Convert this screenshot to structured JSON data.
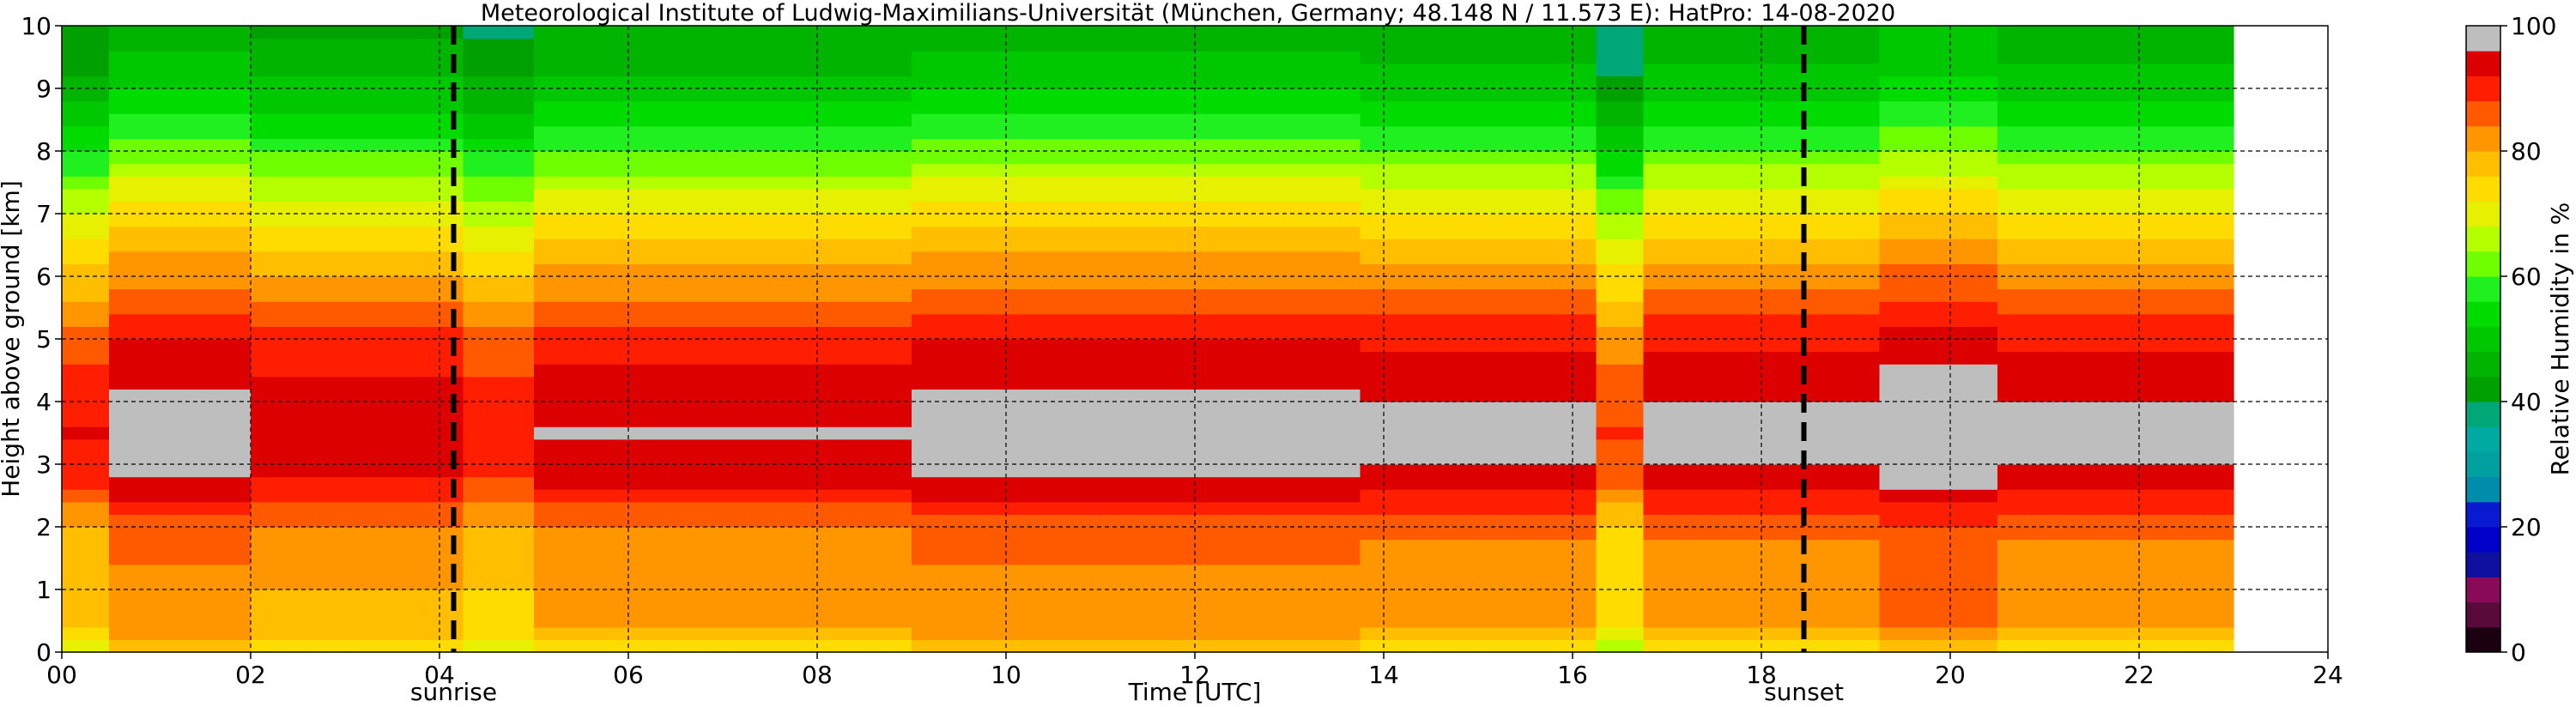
{
  "chart_data": [
    {
      "type": "heatmap",
      "title": "Meteorological Institute of Ludwig-Maximilians-Universität (München, Germany; 48.148 N / 11.573 E):    HatPro: 14-08-2020",
      "xlabel": "Time [UTC]",
      "ylabel": "Height above ground [km]",
      "xlim": [
        0,
        24
      ],
      "ylim": [
        0,
        10
      ],
      "x_ticks": [
        "00",
        "02",
        "04",
        "06",
        "08",
        "10",
        "12",
        "14",
        "16",
        "18",
        "20",
        "22",
        "24"
      ],
      "y_ticks": [
        "0",
        "1",
        "2",
        "3",
        "4",
        "5",
        "6",
        "7",
        "8",
        "9",
        "10"
      ],
      "grid": true,
      "data_end_hour": 23,
      "annotations": [
        {
          "label": "sunrise",
          "x": 4.15
        },
        {
          "label": "sunset",
          "x": 18.45
        }
      ],
      "humidity_profile": {
        "heights_km": [
          0,
          0.1,
          0.2,
          0.5,
          1.0,
          1.5,
          2.0,
          2.5,
          3.0,
          3.5,
          4.0,
          4.5,
          5.0,
          5.5,
          6.0,
          6.5,
          7.0,
          7.5,
          8.0,
          8.5,
          9.0,
          9.5,
          10.0
        ],
        "relative_humidity_percent": [
          88,
          72,
          76,
          78,
          79,
          80,
          82,
          88,
          93,
          94,
          93,
          90,
          88,
          83,
          79,
          74,
          70,
          64,
          58,
          52,
          48,
          44,
          42
        ]
      },
      "period_adjustments": [
        {
          "from": 0.0,
          "to": 0.5,
          "delta": -2
        },
        {
          "from": 0.5,
          "to": 1.9,
          "delta": 4
        },
        {
          "from": 1.9,
          "to": 4.2,
          "delta": 1
        },
        {
          "from": 4.2,
          "to": 5.0,
          "delta": -3
        },
        {
          "from": 5.0,
          "to": 9.1,
          "delta": 2
        },
        {
          "from": 9.1,
          "to": 13.8,
          "delta": 4
        },
        {
          "from": 13.8,
          "to": 16.3,
          "delta": 3
        },
        {
          "from": 16.3,
          "to": 16.8,
          "delta": -6
        },
        {
          "from": 16.8,
          "to": 19.3,
          "delta": 3
        },
        {
          "from": 19.3,
          "to": 20.6,
          "delta": 6
        },
        {
          "from": 20.6,
          "to": 23.0,
          "delta": 3
        }
      ]
    },
    {
      "type": "colorbar",
      "label": "Relative Humidity in %",
      "range": [
        0,
        100
      ],
      "ticks": [
        "0",
        "20",
        "40",
        "60",
        "80",
        "100"
      ],
      "colors": [
        {
          "from": 0,
          "to": 4,
          "color": "#1a0010"
        },
        {
          "from": 4,
          "to": 8,
          "color": "#5a0a3a"
        },
        {
          "from": 8,
          "to": 12,
          "color": "#8a0a5a"
        },
        {
          "from": 12,
          "to": 16,
          "color": "#1010a0"
        },
        {
          "from": 16,
          "to": 20,
          "color": "#0000c8"
        },
        {
          "from": 20,
          "to": 24,
          "color": "#0a1ad0"
        },
        {
          "from": 24,
          "to": 28,
          "color": "#008caa"
        },
        {
          "from": 28,
          "to": 32,
          "color": "#00a0a0"
        },
        {
          "from": 32,
          "to": 36,
          "color": "#00aaa0"
        },
        {
          "from": 36,
          "to": 40,
          "color": "#00a878"
        },
        {
          "from": 40,
          "to": 44,
          "color": "#00a000"
        },
        {
          "from": 44,
          "to": 48,
          "color": "#00b400"
        },
        {
          "from": 48,
          "to": 52,
          "color": "#00c800"
        },
        {
          "from": 52,
          "to": 56,
          "color": "#00dc00"
        },
        {
          "from": 56,
          "to": 60,
          "color": "#20f020"
        },
        {
          "from": 60,
          "to": 64,
          "color": "#70ff00"
        },
        {
          "from": 64,
          "to": 68,
          "color": "#b4ff00"
        },
        {
          "from": 68,
          "to": 72,
          "color": "#e6f000"
        },
        {
          "from": 72,
          "to": 76,
          "color": "#ffdc00"
        },
        {
          "from": 76,
          "to": 80,
          "color": "#ffbe00"
        },
        {
          "from": 80,
          "to": 84,
          "color": "#ff9600"
        },
        {
          "from": 84,
          "to": 88,
          "color": "#ff5a00"
        },
        {
          "from": 88,
          "to": 92,
          "color": "#ff1e00"
        },
        {
          "from": 92,
          "to": 96,
          "color": "#dc0000"
        },
        {
          "from": 96,
          "to": 100,
          "color": "#bebebe"
        }
      ]
    }
  ]
}
